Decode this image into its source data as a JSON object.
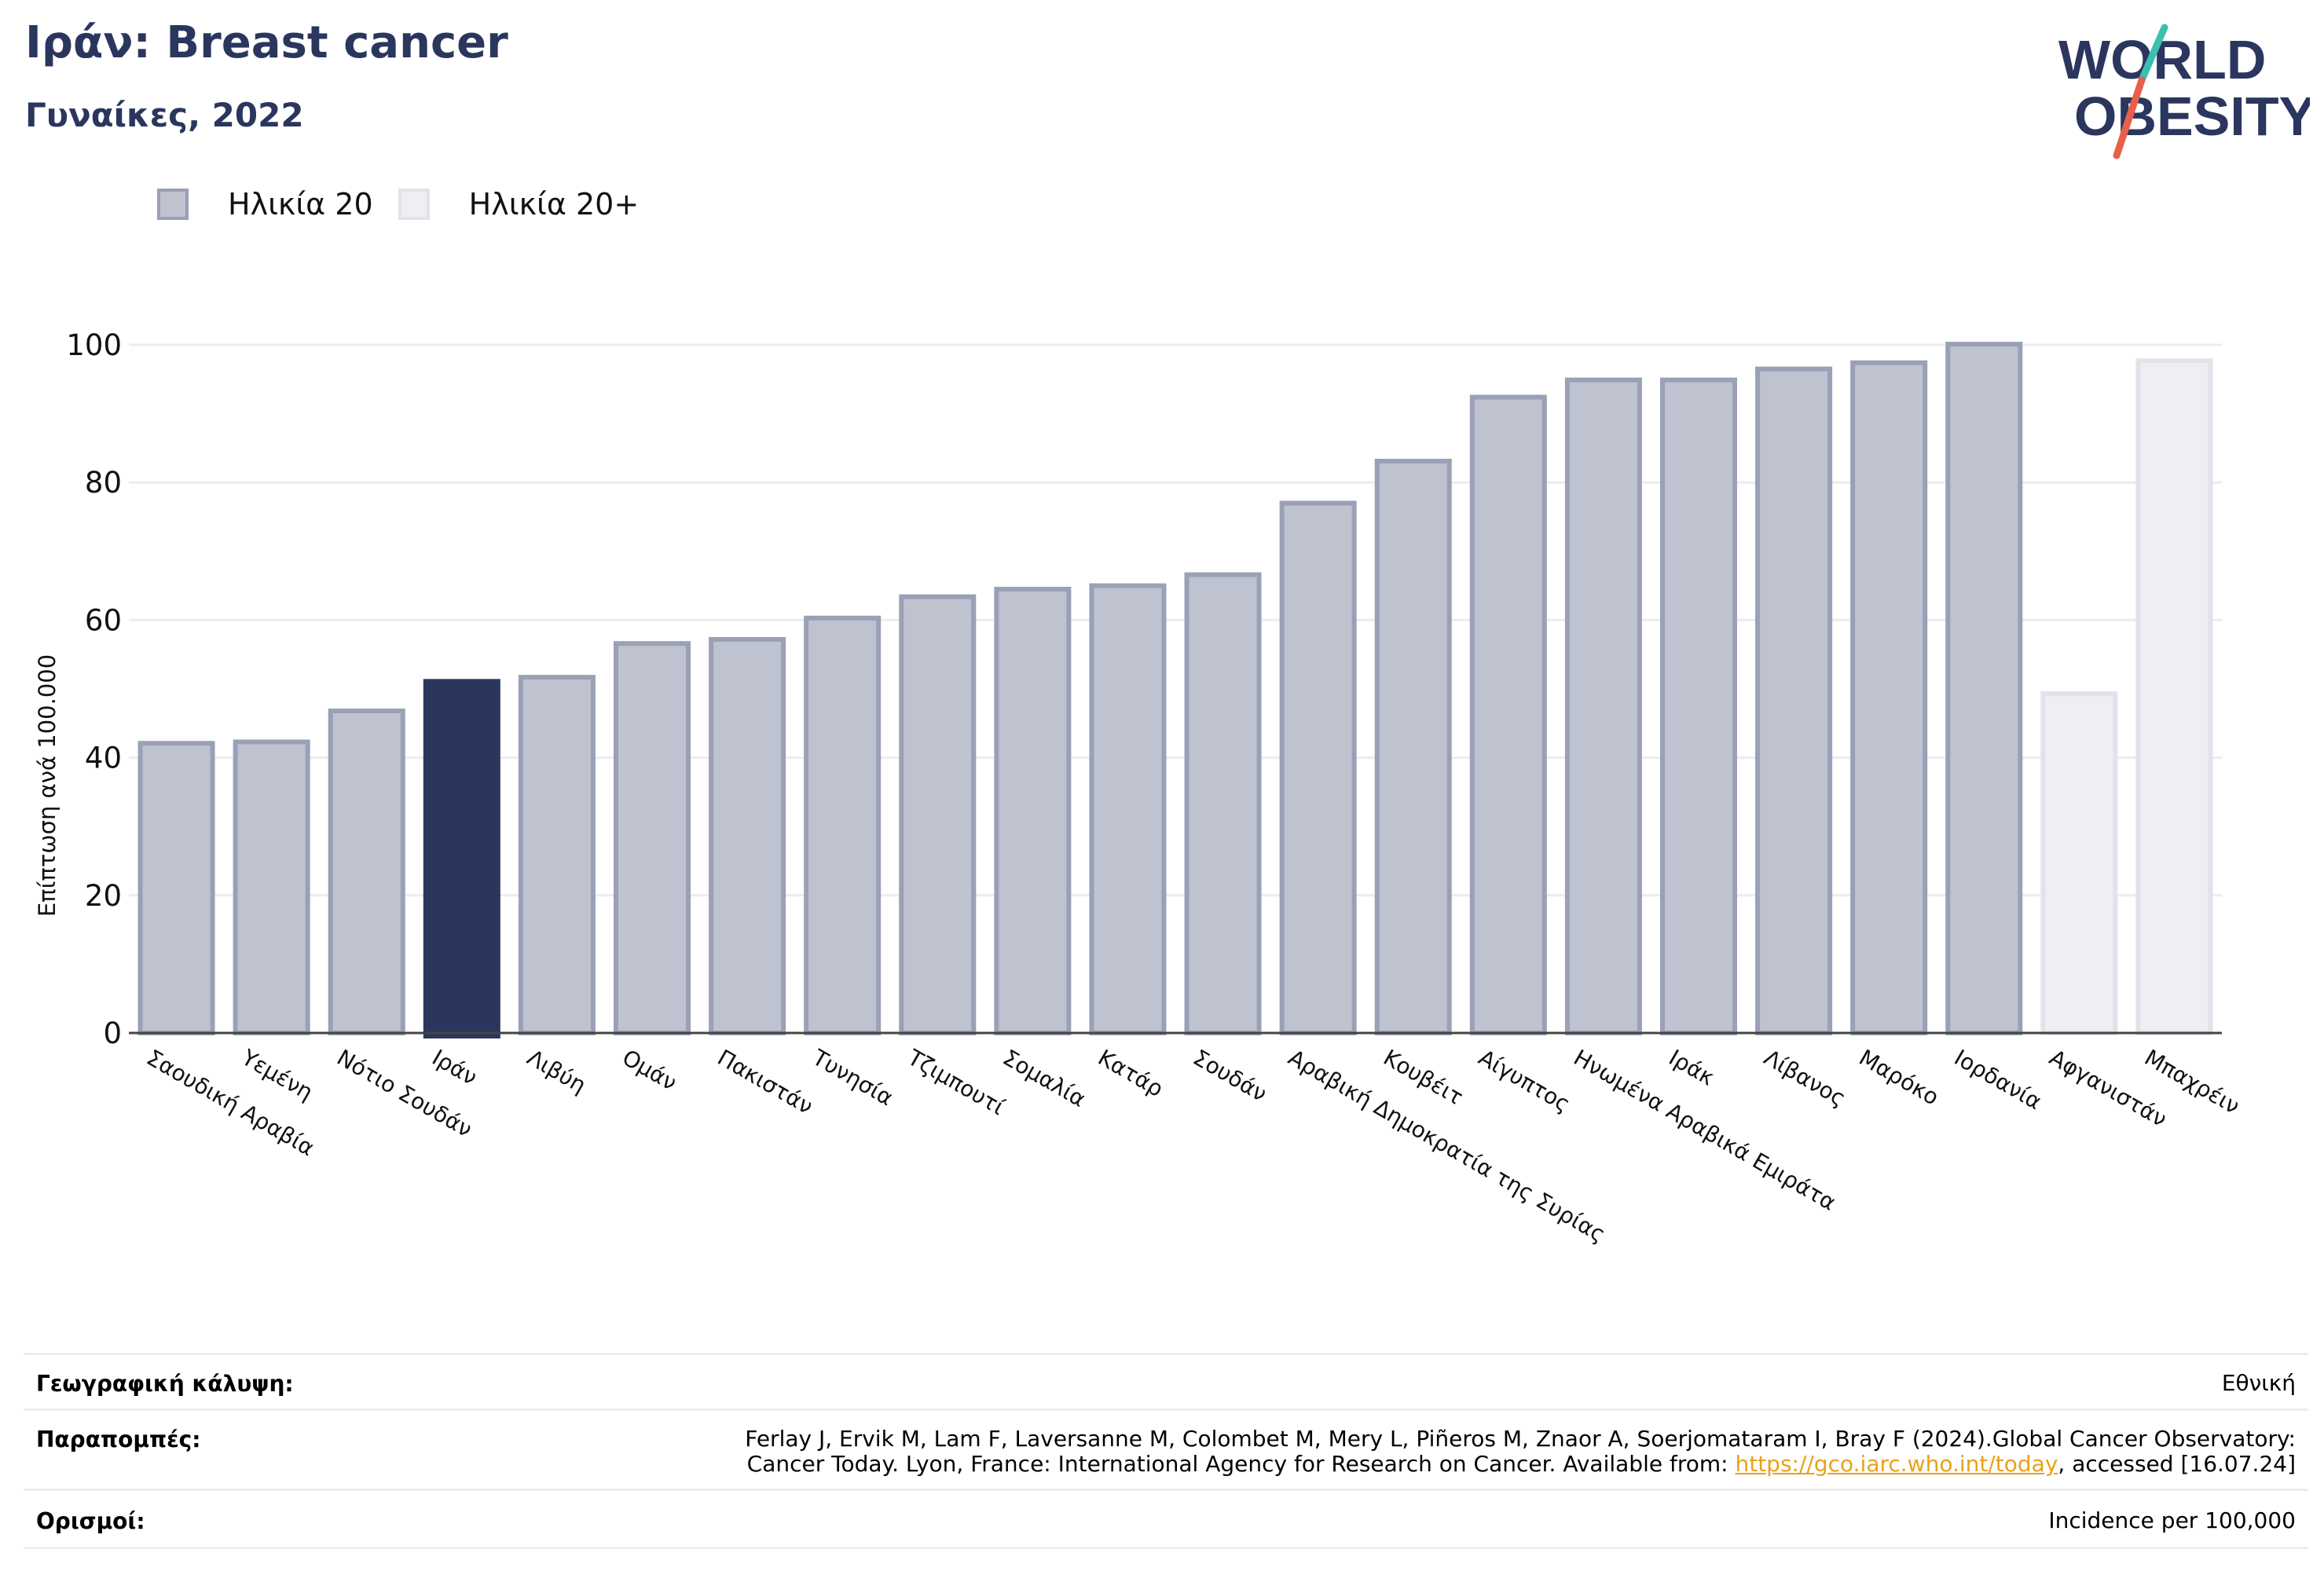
{
  "header": {
    "title": "Ιράν: Breast cancer",
    "subtitle": "Γυναίκες, 2022"
  },
  "logo": {
    "line1": "WORLD",
    "line2": "OBESITY",
    "colors": {
      "text": "#2b365e",
      "slash_teal": "#3bbfb1",
      "slash_red": "#e8604c"
    }
  },
  "legend": [
    {
      "label": "Ηλικία 20",
      "fill": "#bfc2cf",
      "stroke": "#9aa0b6"
    },
    {
      "label": "Ηλικία 20+",
      "fill": "#eeeff3",
      "stroke": "#e2e3ea"
    }
  ],
  "chart_data": {
    "type": "bar",
    "ylabel": "Επίπτωση ανά 100.000",
    "ylim": [
      0,
      110
    ],
    "yticks": [
      0,
      20,
      40,
      60,
      80,
      100
    ],
    "grid": true,
    "highlight": "Ιράν",
    "colors": {
      "highlight": "#2b365e",
      "age20_fill": "#bfc2cf",
      "age20_stroke": "#9aa0b6",
      "age20plus_fill": "#eeeff3",
      "age20plus_stroke": "#e2e3ea"
    },
    "bars": [
      {
        "category": "Σαουδική Αραβία",
        "value": 42.1,
        "series": "Ηλικία 20"
      },
      {
        "category": "Υεμένη",
        "value": 42.3,
        "series": "Ηλικία 20"
      },
      {
        "category": "Νότιο Σουδάν",
        "value": 46.8,
        "series": "Ηλικία 20"
      },
      {
        "category": "Ιράν",
        "value": 51.1,
        "series": "Ηλικία 20"
      },
      {
        "category": "Λιβύη",
        "value": 51.7,
        "series": "Ηλικία 20"
      },
      {
        "category": "Ομάν",
        "value": 56.6,
        "series": "Ηλικία 20"
      },
      {
        "category": "Πακιστάν",
        "value": 57.2,
        "series": "Ηλικία 20"
      },
      {
        "category": "Τυνησία",
        "value": 60.3,
        "series": "Ηλικία 20"
      },
      {
        "category": "Τζιμπουτί",
        "value": 63.4,
        "series": "Ηλικία 20"
      },
      {
        "category": "Σομαλία",
        "value": 64.5,
        "series": "Ηλικία 20"
      },
      {
        "category": "Κατάρ",
        "value": 65.0,
        "series": "Ηλικία 20"
      },
      {
        "category": "Σουδάν",
        "value": 66.6,
        "series": "Ηλικία 20"
      },
      {
        "category": "Αραβική Δημοκρατία της Συρίας",
        "value": 77.0,
        "series": "Ηλικία 20"
      },
      {
        "category": "Κουβέιτ",
        "value": 83.1,
        "series": "Ηλικία 20"
      },
      {
        "category": "Αίγυπτος",
        "value": 92.4,
        "series": "Ηλικία 20"
      },
      {
        "category": "Ηνωμένα Αραβικά Εμιράτα",
        "value": 94.9,
        "series": "Ηλικία 20"
      },
      {
        "category": "Ιράκ",
        "value": 94.9,
        "series": "Ηλικία 20"
      },
      {
        "category": "Λίβανος",
        "value": 96.5,
        "series": "Ηλικία 20"
      },
      {
        "category": "Μαρόκο",
        "value": 97.4,
        "series": "Ηλικία 20"
      },
      {
        "category": "Ιορδανία",
        "value": 100.1,
        "series": "Ηλικία 20"
      },
      {
        "category": "Αφγανιστάν",
        "value": 49.3,
        "series": "Ηλικία 20+"
      },
      {
        "category": "Μπαχρέιν",
        "value": 97.7,
        "series": "Ηλικία 20+"
      }
    ]
  },
  "footer": {
    "coverage_label": "Γεωγραφική κάλυψη:",
    "coverage_value": "Εθνική",
    "references_label": "Παραπομπές:",
    "references_line1": "Ferlay J, Ervik M, Lam F, Laversanne M, Colombet M, Mery L, Piñeros M, Znaor A, Soerjomataram I, Bray F (2024).Global Cancer Observatory:",
    "references_line2_prefix": "Cancer Today. Lyon, France: International Agency for Research on Cancer. Available from: ",
    "references_link": "https://gco.iarc.who.int/today",
    "references_line2_suffix": ", accessed [16.07.24]",
    "definitions_label": "Ορισμοί:",
    "definitions_value": "Incidence per 100,000"
  }
}
